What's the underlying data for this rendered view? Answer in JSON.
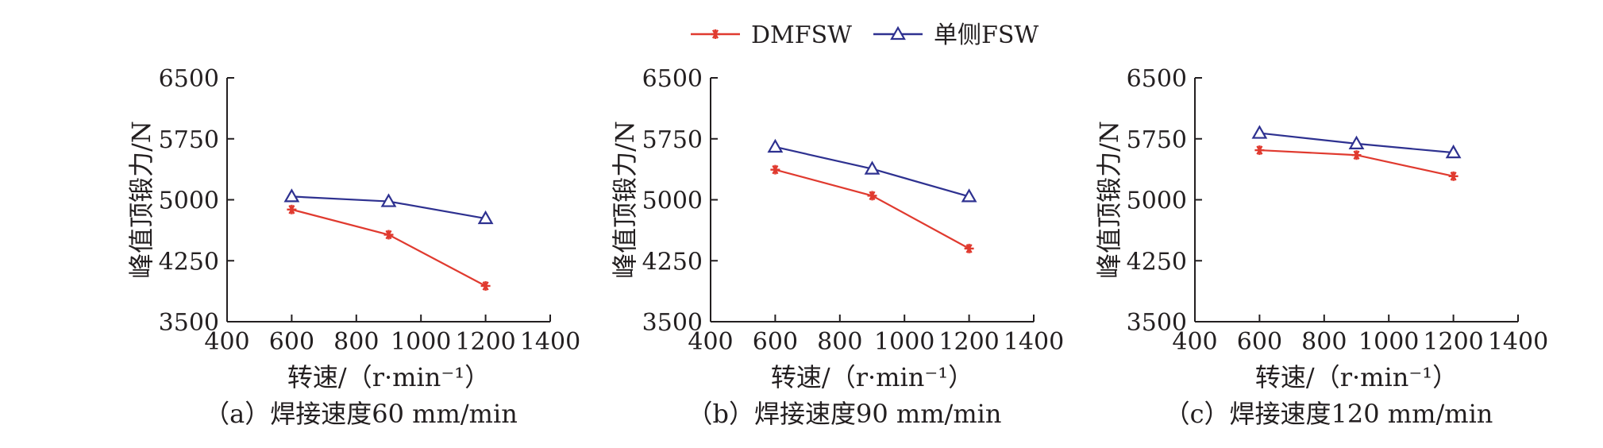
{
  "legend": [
    {
      "name": "DMFSW",
      "color": "#e03a2f",
      "marker": "asterisk"
    },
    {
      "name": "单侧FSW",
      "color": "#2e3190",
      "marker": "triangle-open"
    }
  ],
  "chart_data": [
    {
      "type": "line",
      "caption": "（a）焊接速度60 mm/min",
      "xlabel": "转速/（r·min⁻¹）",
      "ylabel": "峰值顶锻力/N",
      "xlim": [
        400,
        1400
      ],
      "ylim": [
        3500,
        6500
      ],
      "xticks": [
        "400",
        "600",
        "800",
        "1000",
        "1200",
        "1400"
      ],
      "yticks": [
        "3500",
        "4250",
        "5000",
        "5750",
        "6500"
      ],
      "x": [
        600,
        900,
        1200
      ],
      "series": [
        {
          "name": "DMFSW",
          "values": [
            4880,
            4570,
            3940
          ]
        },
        {
          "name": "单侧FSW",
          "values": [
            5040,
            4980,
            4770
          ]
        }
      ]
    },
    {
      "type": "line",
      "caption": "（b）焊接速度90 mm/min",
      "xlabel": "转速/（r·min⁻¹）",
      "ylabel": "峰值顶锻力/N",
      "xlim": [
        400,
        1400
      ],
      "ylim": [
        3500,
        6500
      ],
      "xticks": [
        "400",
        "600",
        "800",
        "1000",
        "1200",
        "1400"
      ],
      "yticks": [
        "3500",
        "4250",
        "5000",
        "5750",
        "6500"
      ],
      "x": [
        600,
        900,
        1200
      ],
      "series": [
        {
          "name": "DMFSW",
          "values": [
            5370,
            5050,
            4400
          ]
        },
        {
          "name": "单侧FSW",
          "values": [
            5650,
            5380,
            5040
          ]
        }
      ]
    },
    {
      "type": "line",
      "caption": "（c）焊接速度120 mm/min",
      "xlabel": "转速/（r·min⁻¹）",
      "ylabel": "峰值顶锻力/N",
      "xlim": [
        400,
        1400
      ],
      "ylim": [
        3500,
        6500
      ],
      "xticks": [
        "400",
        "600",
        "800",
        "1000",
        "1200",
        "1400"
      ],
      "yticks": [
        "3500",
        "4250",
        "5000",
        "5750",
        "6500"
      ],
      "x": [
        600,
        900,
        1200
      ],
      "series": [
        {
          "name": "DMFSW",
          "values": [
            5610,
            5550,
            5290
          ]
        },
        {
          "name": "单侧FSW",
          "values": [
            5820,
            5690,
            5580
          ]
        }
      ]
    }
  ]
}
